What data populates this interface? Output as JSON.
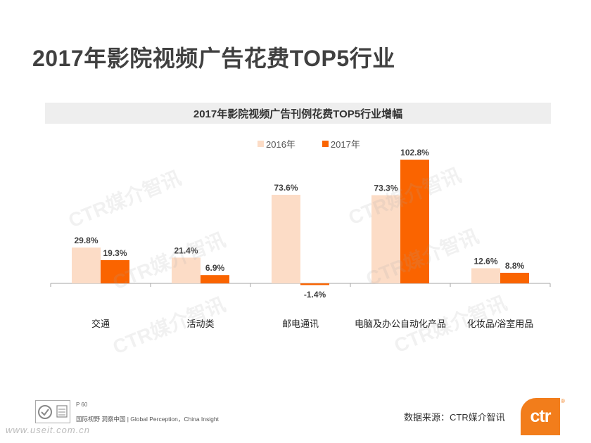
{
  "page": {
    "title": "2017年影院视频广告花费TOP5行业"
  },
  "chart_data": {
    "type": "bar",
    "title": "2017年影院视频广告刊例花费TOP5行业增幅",
    "categories": [
      "交通",
      "活动类",
      "邮电通讯",
      "电脑及办公自动化产品",
      "化妆品/浴室用品"
    ],
    "series": [
      {
        "name": "2016年",
        "values": [
          29.8,
          21.4,
          73.6,
          73.3,
          12.6
        ],
        "labels": [
          "29.8%",
          "21.4%",
          "73.6%",
          "73.3%",
          "12.6%"
        ],
        "color": "#fcdcc6"
      },
      {
        "name": "2017年",
        "values": [
          19.3,
          6.9,
          -1.4,
          102.8,
          8.8
        ],
        "labels": [
          "19.3%",
          "6.9%",
          "-1.4%",
          "102.8%",
          "8.8%"
        ],
        "color": "#fa6400"
      }
    ],
    "ylim": [
      -20,
      120
    ],
    "grid": false,
    "legend_position": "top"
  },
  "watermark": {
    "text": "CTR媒介智讯"
  },
  "footer": {
    "page_number": "P 60",
    "slogan": "国际视野  洞察中国 | Global Perception，China Insight",
    "website": "www.useit.com.cn",
    "source": "数据来源：CTR媒介智讯",
    "brand": "ctr",
    "registered_mark": "®"
  },
  "colors": {
    "brand_orange": "#f27d1b",
    "series_2016": "#fcdcc6",
    "series_2017": "#fa6400"
  }
}
